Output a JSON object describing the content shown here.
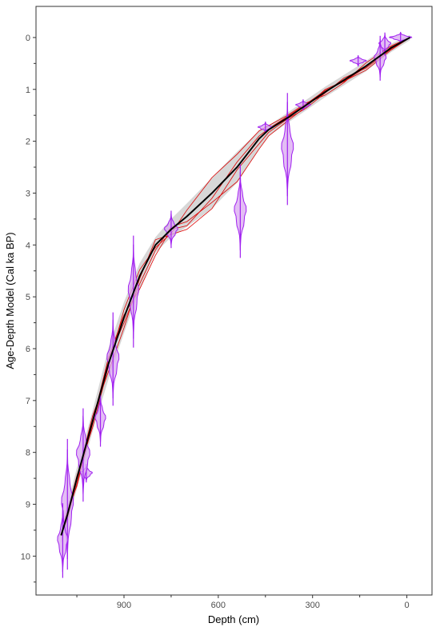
{
  "chart_data": {
    "type": "line",
    "title": "",
    "xlabel": "Depth (cm)",
    "ylabel": "Age-Depth Model (Cal ka BP)",
    "xlim": [
      1180,
      -80
    ],
    "ylim": [
      -0.6,
      10.75
    ],
    "x_reversed": true,
    "y_reversed": true,
    "x_ticks": [
      900,
      600,
      300,
      0
    ],
    "y_ticks": [
      0,
      1,
      2,
      3,
      4,
      5,
      6,
      7,
      8,
      9,
      10
    ],
    "grid": false,
    "legend": "none",
    "colors": {
      "median": "#000000",
      "ensemble": "#dd0000",
      "uncertainty_band": "#bdbdbd",
      "dates": "#a020f0",
      "dates_fill": "#d9a8f0",
      "frame": "#333333"
    },
    "median_model": {
      "x": [
        -10,
        50,
        130,
        200,
        260,
        320,
        380,
        440,
        470,
        540,
        620,
        700,
        750,
        800,
        850,
        900,
        950,
        1000,
        1050,
        1080,
        1100
      ],
      "y": [
        0.0,
        0.2,
        0.55,
        0.82,
        1.05,
        1.3,
        1.55,
        1.78,
        1.95,
        2.5,
        3.0,
        3.45,
        3.7,
        4.0,
        4.6,
        5.4,
        6.3,
        7.4,
        8.5,
        9.2,
        9.6
      ]
    },
    "band_upper": [
      -0.05,
      0.12,
      0.45,
      0.72,
      0.95,
      1.2,
      1.45,
      1.7,
      1.8,
      2.2,
      2.7,
      3.2,
      3.5,
      3.85,
      4.35,
      5.1,
      6.0,
      7.2,
      8.3,
      9.0,
      9.45
    ],
    "band_lower": [
      0.05,
      0.28,
      0.65,
      0.92,
      1.15,
      1.4,
      1.65,
      1.9,
      2.15,
      2.8,
      3.3,
      3.65,
      3.85,
      4.15,
      4.85,
      5.7,
      6.6,
      7.6,
      8.7,
      9.4,
      9.75
    ],
    "ensemble_offsets": [
      [
        0.0,
        0.04,
        0.08,
        0.02,
        -0.05,
        0.03,
        0.06,
        0.12,
        0.2,
        0.28,
        0.18,
        0.1,
        -0.05,
        0.1,
        0.15,
        0.1,
        -0.1,
        0.0,
        0.1,
        0.05,
        0.0
      ],
      [
        0.0,
        -0.04,
        -0.06,
        0.05,
        0.06,
        -0.04,
        -0.05,
        -0.08,
        -0.15,
        -0.25,
        -0.3,
        -0.12,
        0.08,
        0.05,
        -0.12,
        -0.15,
        0.05,
        0.12,
        -0.05,
        -0.05,
        0.0
      ],
      [
        0.0,
        0.02,
        0.04,
        -0.04,
        0.02,
        0.06,
        0.02,
        0.05,
        0.1,
        0.05,
        0.3,
        0.25,
        0.1,
        -0.1,
        0.05,
        0.2,
        0.15,
        -0.1,
        0.0,
        0.08,
        0.0
      ],
      [
        0.0,
        -0.02,
        0.02,
        0.03,
        -0.03,
        -0.02,
        -0.03,
        -0.02,
        -0.05,
        -0.1,
        0.1,
        0.18,
        0.0,
        0.2,
        0.25,
        -0.05,
        -0.12,
        0.05,
        0.15,
        -0.08,
        0.0
      ]
    ],
    "dates": [
      {
        "depth": 20,
        "age": 0.0,
        "sd": 0.03,
        "width": 30
      },
      {
        "depth": 70,
        "age": 0.12,
        "sd": 0.06,
        "width": 16
      },
      {
        "depth": 85,
        "age": 0.4,
        "sd": 0.12,
        "width": 16
      },
      {
        "depth": 155,
        "age": 0.45,
        "sd": 0.03,
        "width": 22
      },
      {
        "depth": 330,
        "age": 1.3,
        "sd": 0.03,
        "width": 20
      },
      {
        "depth": 380,
        "age": 2.15,
        "sd": 0.3,
        "width": 16
      },
      {
        "depth": 450,
        "age": 1.73,
        "sd": 0.03,
        "width": 20
      },
      {
        "depth": 530,
        "age": 3.35,
        "sd": 0.25,
        "width": 16
      },
      {
        "depth": 750,
        "age": 3.7,
        "sd": 0.1,
        "width": 18
      },
      {
        "depth": 870,
        "age": 4.9,
        "sd": 0.3,
        "width": 14
      },
      {
        "depth": 935,
        "age": 6.2,
        "sd": 0.25,
        "width": 16
      },
      {
        "depth": 975,
        "age": 7.35,
        "sd": 0.15,
        "width": 14
      },
      {
        "depth": 1020,
        "age": 8.4,
        "sd": 0.05,
        "width": 16
      },
      {
        "depth": 1030,
        "age": 8.05,
        "sd": 0.25,
        "width": 18
      },
      {
        "depth": 1080,
        "age": 9.0,
        "sd": 0.35,
        "width": 16
      },
      {
        "depth": 1095,
        "age": 9.7,
        "sd": 0.2,
        "width": 14
      }
    ]
  }
}
